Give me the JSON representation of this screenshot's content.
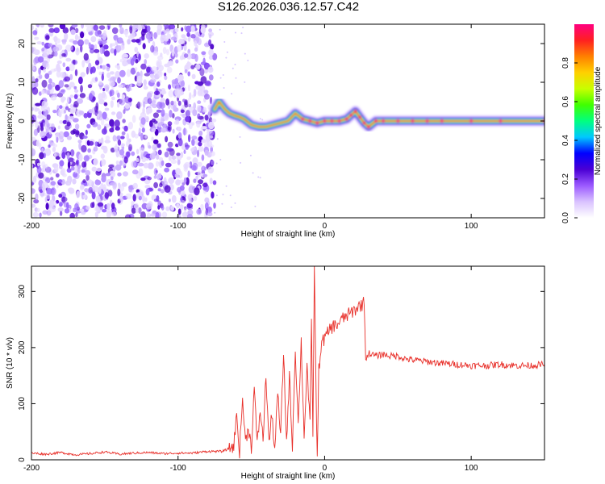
{
  "title": "S126.2026.036.12.57.C42",
  "chart_data": [
    {
      "type": "heatmap",
      "xlabel": "Height of straight line (km)",
      "ylabel": "Frequency (Hz)",
      "xlim": [
        -200,
        150
      ],
      "ylim": [
        -25,
        25
      ],
      "xticks": [
        -200,
        -100,
        0,
        100
      ],
      "xtick_labels": [
        "-200",
        "-100",
        "0",
        "100"
      ],
      "yticks": [
        -20,
        -10,
        0,
        10,
        20
      ],
      "ytick_labels": [
        "-20",
        "-10",
        "0",
        "10",
        "20"
      ],
      "colorbar": {
        "label": "Normalized spectral amplitude",
        "range": [
          0,
          1
        ],
        "ticks": [
          0.0,
          0.2,
          0.4,
          0.6,
          0.8
        ],
        "tick_labels": [
          "0.0",
          "0.2",
          "0.4",
          "0.6",
          "0.8"
        ],
        "colors": [
          "#ffffff",
          "#d9c2ff",
          "#9b59ff",
          "#4b00d4",
          "#0000ff",
          "#00c8ff",
          "#00ff80",
          "#40ff00",
          "#c8ff00",
          "#ffd000",
          "#ff8000",
          "#ff2020",
          "#ff0080"
        ]
      },
      "noise_region_x": [
        -200,
        -75
      ],
      "ridge": {
        "x": [
          -75,
          -72,
          -70,
          -68,
          -65,
          -62,
          -58,
          -55,
          -50,
          -45,
          -40,
          -35,
          -30,
          -25,
          -20,
          -15,
          -10,
          -5,
          0,
          5,
          10,
          15,
          18,
          21,
          24,
          27,
          30,
          35,
          40,
          50,
          60,
          70,
          80,
          100,
          120,
          150
        ],
        "y": [
          3,
          5,
          4,
          3,
          2,
          1.5,
          1,
          0.5,
          -1,
          -1.5,
          -1.5,
          -1,
          -0.5,
          0,
          2,
          0.5,
          0,
          -0.5,
          0,
          0,
          0,
          0.5,
          1.5,
          2.5,
          1,
          -0.5,
          -1.5,
          0,
          0,
          0,
          0,
          0,
          0,
          0,
          0,
          0
        ]
      }
    },
    {
      "type": "line",
      "xlabel": "Height of straight line (km)",
      "ylabel": "SNR (10 * v/v)",
      "xlim": [
        -200,
        150
      ],
      "ylim": [
        0,
        345
      ],
      "xticks": [
        -200,
        -100,
        0,
        100
      ],
      "xtick_labels": [
        "-200",
        "-100",
        "0",
        "100"
      ],
      "yticks": [
        0,
        100,
        200,
        300
      ],
      "ytick_labels": [
        "0",
        "100",
        "200",
        "300"
      ],
      "color": "#e8302a",
      "series": [
        {
          "x": [
            -200,
            -190,
            -180,
            -170,
            -160,
            -150,
            -140,
            -130,
            -120,
            -110,
            -100,
            -90,
            -80,
            -70,
            -65,
            -62,
            -60,
            -58,
            -56,
            -54,
            -52,
            -50,
            -48,
            -46,
            -44,
            -42,
            -40,
            -38,
            -36,
            -34,
            -32,
            -30,
            -28,
            -26,
            -24,
            -22,
            -20,
            -18,
            -16,
            -14,
            -12,
            -10,
            -9,
            -8,
            -7,
            -6,
            -5,
            -4,
            -3,
            -2,
            0,
            2,
            4,
            6,
            8,
            10,
            12,
            14,
            16,
            18,
            20,
            22,
            24,
            26,
            27,
            28,
            30,
            35,
            40,
            45,
            50,
            55,
            60,
            70,
            80,
            90,
            100,
            110,
            120,
            130,
            140,
            150
          ],
          "values": [
            12,
            10,
            13,
            9,
            11,
            14,
            10,
            12,
            13,
            11,
            12,
            12,
            15,
            15,
            20,
            25,
            80,
            15,
            110,
            30,
            60,
            20,
            130,
            25,
            90,
            35,
            150,
            30,
            80,
            20,
            120,
            40,
            190,
            30,
            150,
            25,
            200,
            60,
            210,
            40,
            170,
            60,
            240,
            50,
            345,
            150,
            0,
            160,
            190,
            210,
            215,
            225,
            235,
            238,
            240,
            245,
            250,
            255,
            258,
            262,
            266,
            270,
            275,
            278,
            280,
            180,
            190,
            185,
            188,
            185,
            185,
            180,
            178,
            175,
            172,
            170,
            168,
            168,
            170,
            168,
            168,
            170
          ]
        }
      ]
    }
  ]
}
